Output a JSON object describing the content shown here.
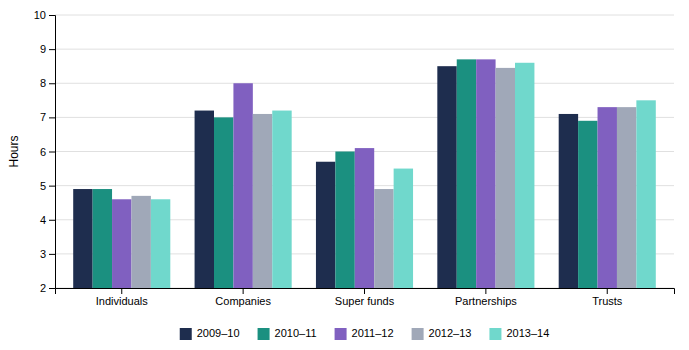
{
  "chart_data": {
    "type": "bar",
    "ylabel": "Hours",
    "categories": [
      "Individuals",
      "Companies",
      "Super funds",
      "Partnerships",
      "Trusts"
    ],
    "series": [
      {
        "name": "2009–10",
        "color": "#1e2d4e",
        "values": [
          4.9,
          7.2,
          5.7,
          8.5,
          7.1
        ]
      },
      {
        "name": "2010–11",
        "color": "#1b9080",
        "values": [
          4.9,
          7.0,
          6.0,
          8.7,
          6.9
        ]
      },
      {
        "name": "2011–12",
        "color": "#8060c0",
        "values": [
          4.6,
          8.0,
          6.1,
          8.7,
          7.3
        ]
      },
      {
        "name": "2012–13",
        "color": "#a0a8b8",
        "values": [
          4.7,
          7.1,
          4.9,
          8.45,
          7.3
        ]
      },
      {
        "name": "2013–14",
        "color": "#70d8cc",
        "values": [
          4.6,
          7.2,
          5.5,
          8.6,
          7.5
        ]
      }
    ],
    "ylim": [
      2,
      10
    ],
    "yticks": [
      2,
      3,
      4,
      5,
      6,
      7,
      8,
      9,
      10
    ],
    "grid": true,
    "legend": "bottom"
  }
}
